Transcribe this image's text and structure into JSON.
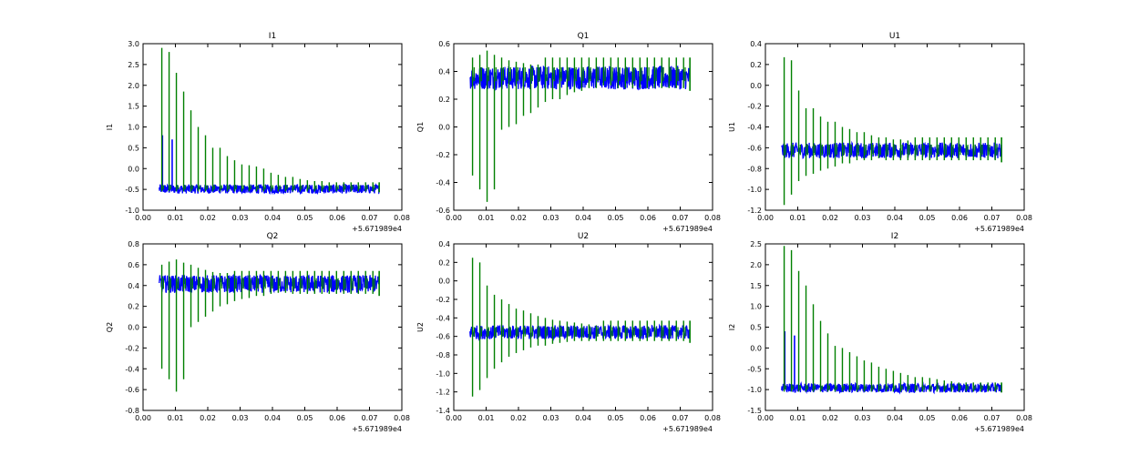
{
  "chart_data": [
    {
      "type": "line",
      "title": "I1",
      "ylabel": "I1",
      "xlim": [
        0.0,
        0.08
      ],
      "ylim": [
        -1.0,
        3.0
      ],
      "x_offset_label": "+5.671989e4",
      "x_ticks": [
        "0.00",
        "0.01",
        "0.02",
        "0.03",
        "0.04",
        "0.05",
        "0.06",
        "0.07",
        "0.08"
      ],
      "y_ticks": [
        "-1.0",
        "-0.5",
        "0.0",
        "0.5",
        "1.0",
        "1.5",
        "2.0",
        "2.5",
        "3.0"
      ],
      "series": [
        {
          "color": "#0000ff",
          "baseline": -0.48,
          "band": [
            -0.6,
            -0.38
          ],
          "spikes": [
            {
              "x": 0.006,
              "y": 0.8
            },
            {
              "x": 0.009,
              "y": 0.7
            }
          ],
          "x_range": [
            0.005,
            0.073
          ]
        },
        {
          "color": "#008000",
          "baseline": -0.45,
          "x_range": [
            0.005,
            0.073
          ],
          "spike_max": [
            2.9,
            2.8,
            2.3,
            1.85,
            1.4,
            1.0,
            0.8,
            0.5,
            0.5,
            0.3,
            0.2,
            0.1,
            0.08,
            0.05,
            0.0,
            -0.1,
            -0.15,
            -0.2,
            -0.2,
            -0.25,
            -0.28,
            -0.3,
            -0.3,
            -0.33
          ]
        }
      ]
    },
    {
      "type": "line",
      "title": "Q1",
      "ylabel": "Q1",
      "xlim": [
        0.0,
        0.08
      ],
      "ylim": [
        -0.6,
        0.6
      ],
      "x_offset_label": "+5.671989e4",
      "x_ticks": [
        "0.00",
        "0.01",
        "0.02",
        "0.03",
        "0.04",
        "0.05",
        "0.06",
        "0.07",
        "0.08"
      ],
      "y_ticks": [
        "-0.6",
        "-0.4",
        "-0.2",
        "0.0",
        "0.2",
        "0.4",
        "0.6"
      ],
      "series": [
        {
          "color": "#0000ff",
          "baseline": 0.35,
          "band": [
            0.27,
            0.44
          ],
          "x_range": [
            0.005,
            0.073
          ]
        },
        {
          "color": "#008000",
          "baseline": 0.38,
          "x_range": [
            0.005,
            0.073
          ],
          "spike_min": [
            -0.35,
            -0.45,
            -0.54,
            -0.45,
            -0.02,
            0.0,
            0.02,
            0.08,
            0.1,
            0.14,
            0.18,
            0.2,
            0.2,
            0.23,
            0.25,
            0.26,
            0.28,
            0.28,
            0.3,
            0.3
          ],
          "spike_max": [
            0.5,
            0.52,
            0.55,
            0.52,
            0.5,
            0.48,
            0.47,
            0.46,
            0.45,
            0.45
          ]
        }
      ]
    },
    {
      "type": "line",
      "title": "U1",
      "ylabel": "U1",
      "xlim": [
        0.0,
        0.08
      ],
      "ylim": [
        -1.2,
        0.4
      ],
      "x_offset_label": "+5.671989e4",
      "x_ticks": [
        "0.00",
        "0.01",
        "0.02",
        "0.03",
        "0.04",
        "0.05",
        "0.06",
        "0.07",
        "0.08"
      ],
      "y_ticks": [
        "-1.2",
        "-1.0",
        "-0.8",
        "-0.6",
        "-0.4",
        "-0.2",
        "0.0",
        "0.2",
        "0.4"
      ],
      "series": [
        {
          "color": "#0000ff",
          "baseline": -0.62,
          "band": [
            -0.7,
            -0.55
          ],
          "x_range": [
            0.005,
            0.073
          ]
        },
        {
          "color": "#008000",
          "baseline": -0.62,
          "x_range": [
            0.005,
            0.073
          ],
          "spike_max": [
            0.27,
            0.24,
            -0.05,
            -0.22,
            -0.22,
            -0.3,
            -0.35,
            -0.35,
            -0.4,
            -0.42,
            -0.45,
            -0.45,
            -0.48,
            -0.5,
            -0.5,
            -0.52,
            -0.52,
            -0.53
          ],
          "spike_min": [
            -1.15,
            -1.05,
            -0.92,
            -0.87,
            -0.85,
            -0.82,
            -0.8,
            -0.78,
            -0.75,
            -0.75,
            -0.72,
            -0.72,
            -0.72,
            -0.7
          ]
        }
      ]
    },
    {
      "type": "line",
      "title": "Q2",
      "ylabel": "Q2",
      "xlim": [
        0.0,
        0.08
      ],
      "ylim": [
        -0.8,
        0.8
      ],
      "x_offset_label": "+5.671989e4",
      "x_ticks": [
        "0.00",
        "0.01",
        "0.02",
        "0.03",
        "0.04",
        "0.05",
        "0.06",
        "0.07",
        "0.08"
      ],
      "y_ticks": [
        "-0.8",
        "-0.6",
        "-0.4",
        "-0.2",
        "0.0",
        "0.2",
        "0.4",
        "0.6",
        "0.8"
      ],
      "series": [
        {
          "color": "#0000ff",
          "baseline": 0.42,
          "band": [
            0.33,
            0.5
          ],
          "x_range": [
            0.005,
            0.073
          ]
        },
        {
          "color": "#008000",
          "baseline": 0.42,
          "x_range": [
            0.005,
            0.073
          ],
          "spike_min": [
            -0.4,
            -0.5,
            -0.62,
            -0.5,
            0.0,
            0.05,
            0.1,
            0.15,
            0.2,
            0.22,
            0.25,
            0.27,
            0.28,
            0.3,
            0.3,
            0.32,
            0.33,
            0.33
          ],
          "spike_max": [
            0.6,
            0.63,
            0.65,
            0.62,
            0.6,
            0.57,
            0.55,
            0.53,
            0.52,
            0.52
          ]
        }
      ]
    },
    {
      "type": "line",
      "title": "U2",
      "ylabel": "U2",
      "xlim": [
        0.0,
        0.08
      ],
      "ylim": [
        -1.4,
        0.4
      ],
      "x_offset_label": "+5.671989e4",
      "x_ticks": [
        "0.00",
        "0.01",
        "0.02",
        "0.03",
        "0.04",
        "0.05",
        "0.06",
        "0.07",
        "0.08"
      ],
      "y_ticks": [
        "-1.4",
        "-1.2",
        "-1.0",
        "-0.8",
        "-0.6",
        "-0.4",
        "-0.2",
        "0.0",
        "0.2",
        "0.4"
      ],
      "series": [
        {
          "color": "#0000ff",
          "baseline": -0.55,
          "band": [
            -0.63,
            -0.48
          ],
          "x_range": [
            0.005,
            0.073
          ]
        },
        {
          "color": "#008000",
          "baseline": -0.55,
          "x_range": [
            0.005,
            0.073
          ],
          "spike_max": [
            0.25,
            0.2,
            -0.05,
            -0.15,
            -0.2,
            -0.25,
            -0.3,
            -0.32,
            -0.35,
            -0.38,
            -0.4,
            -0.42,
            -0.43,
            -0.44,
            -0.45,
            -0.46,
            -0.47,
            -0.48
          ],
          "spike_min": [
            -1.25,
            -1.18,
            -1.05,
            -0.95,
            -0.88,
            -0.82,
            -0.78,
            -0.75,
            -0.72,
            -0.7,
            -0.7,
            -0.68,
            -0.67,
            -0.66
          ]
        }
      ]
    },
    {
      "type": "line",
      "title": "I2",
      "ylabel": "I2",
      "xlim": [
        0.0,
        0.08
      ],
      "ylim": [
        -1.5,
        2.5
      ],
      "x_offset_label": "+5.671989e4",
      "x_ticks": [
        "0.00",
        "0.01",
        "0.02",
        "0.03",
        "0.04",
        "0.05",
        "0.06",
        "0.07",
        "0.08"
      ],
      "y_ticks": [
        "-1.5",
        "-1.0",
        "-0.5",
        "0.0",
        "0.5",
        "1.0",
        "1.5",
        "2.0",
        "2.5"
      ],
      "series": [
        {
          "color": "#0000ff",
          "baseline": -0.97,
          "band": [
            -1.07,
            -0.85
          ],
          "spikes": [
            {
              "x": 0.006,
              "y": 0.4
            },
            {
              "x": 0.009,
              "y": 0.3
            }
          ],
          "x_range": [
            0.005,
            0.073
          ]
        },
        {
          "color": "#008000",
          "baseline": -0.95,
          "x_range": [
            0.005,
            0.073
          ],
          "spike_max": [
            2.45,
            2.35,
            1.85,
            1.5,
            1.05,
            0.65,
            0.35,
            0.05,
            0.0,
            -0.1,
            -0.2,
            -0.3,
            -0.35,
            -0.45,
            -0.5,
            -0.55,
            -0.6,
            -0.65,
            -0.7,
            -0.7,
            -0.72,
            -0.75,
            -0.78,
            -0.8
          ]
        }
      ]
    }
  ]
}
